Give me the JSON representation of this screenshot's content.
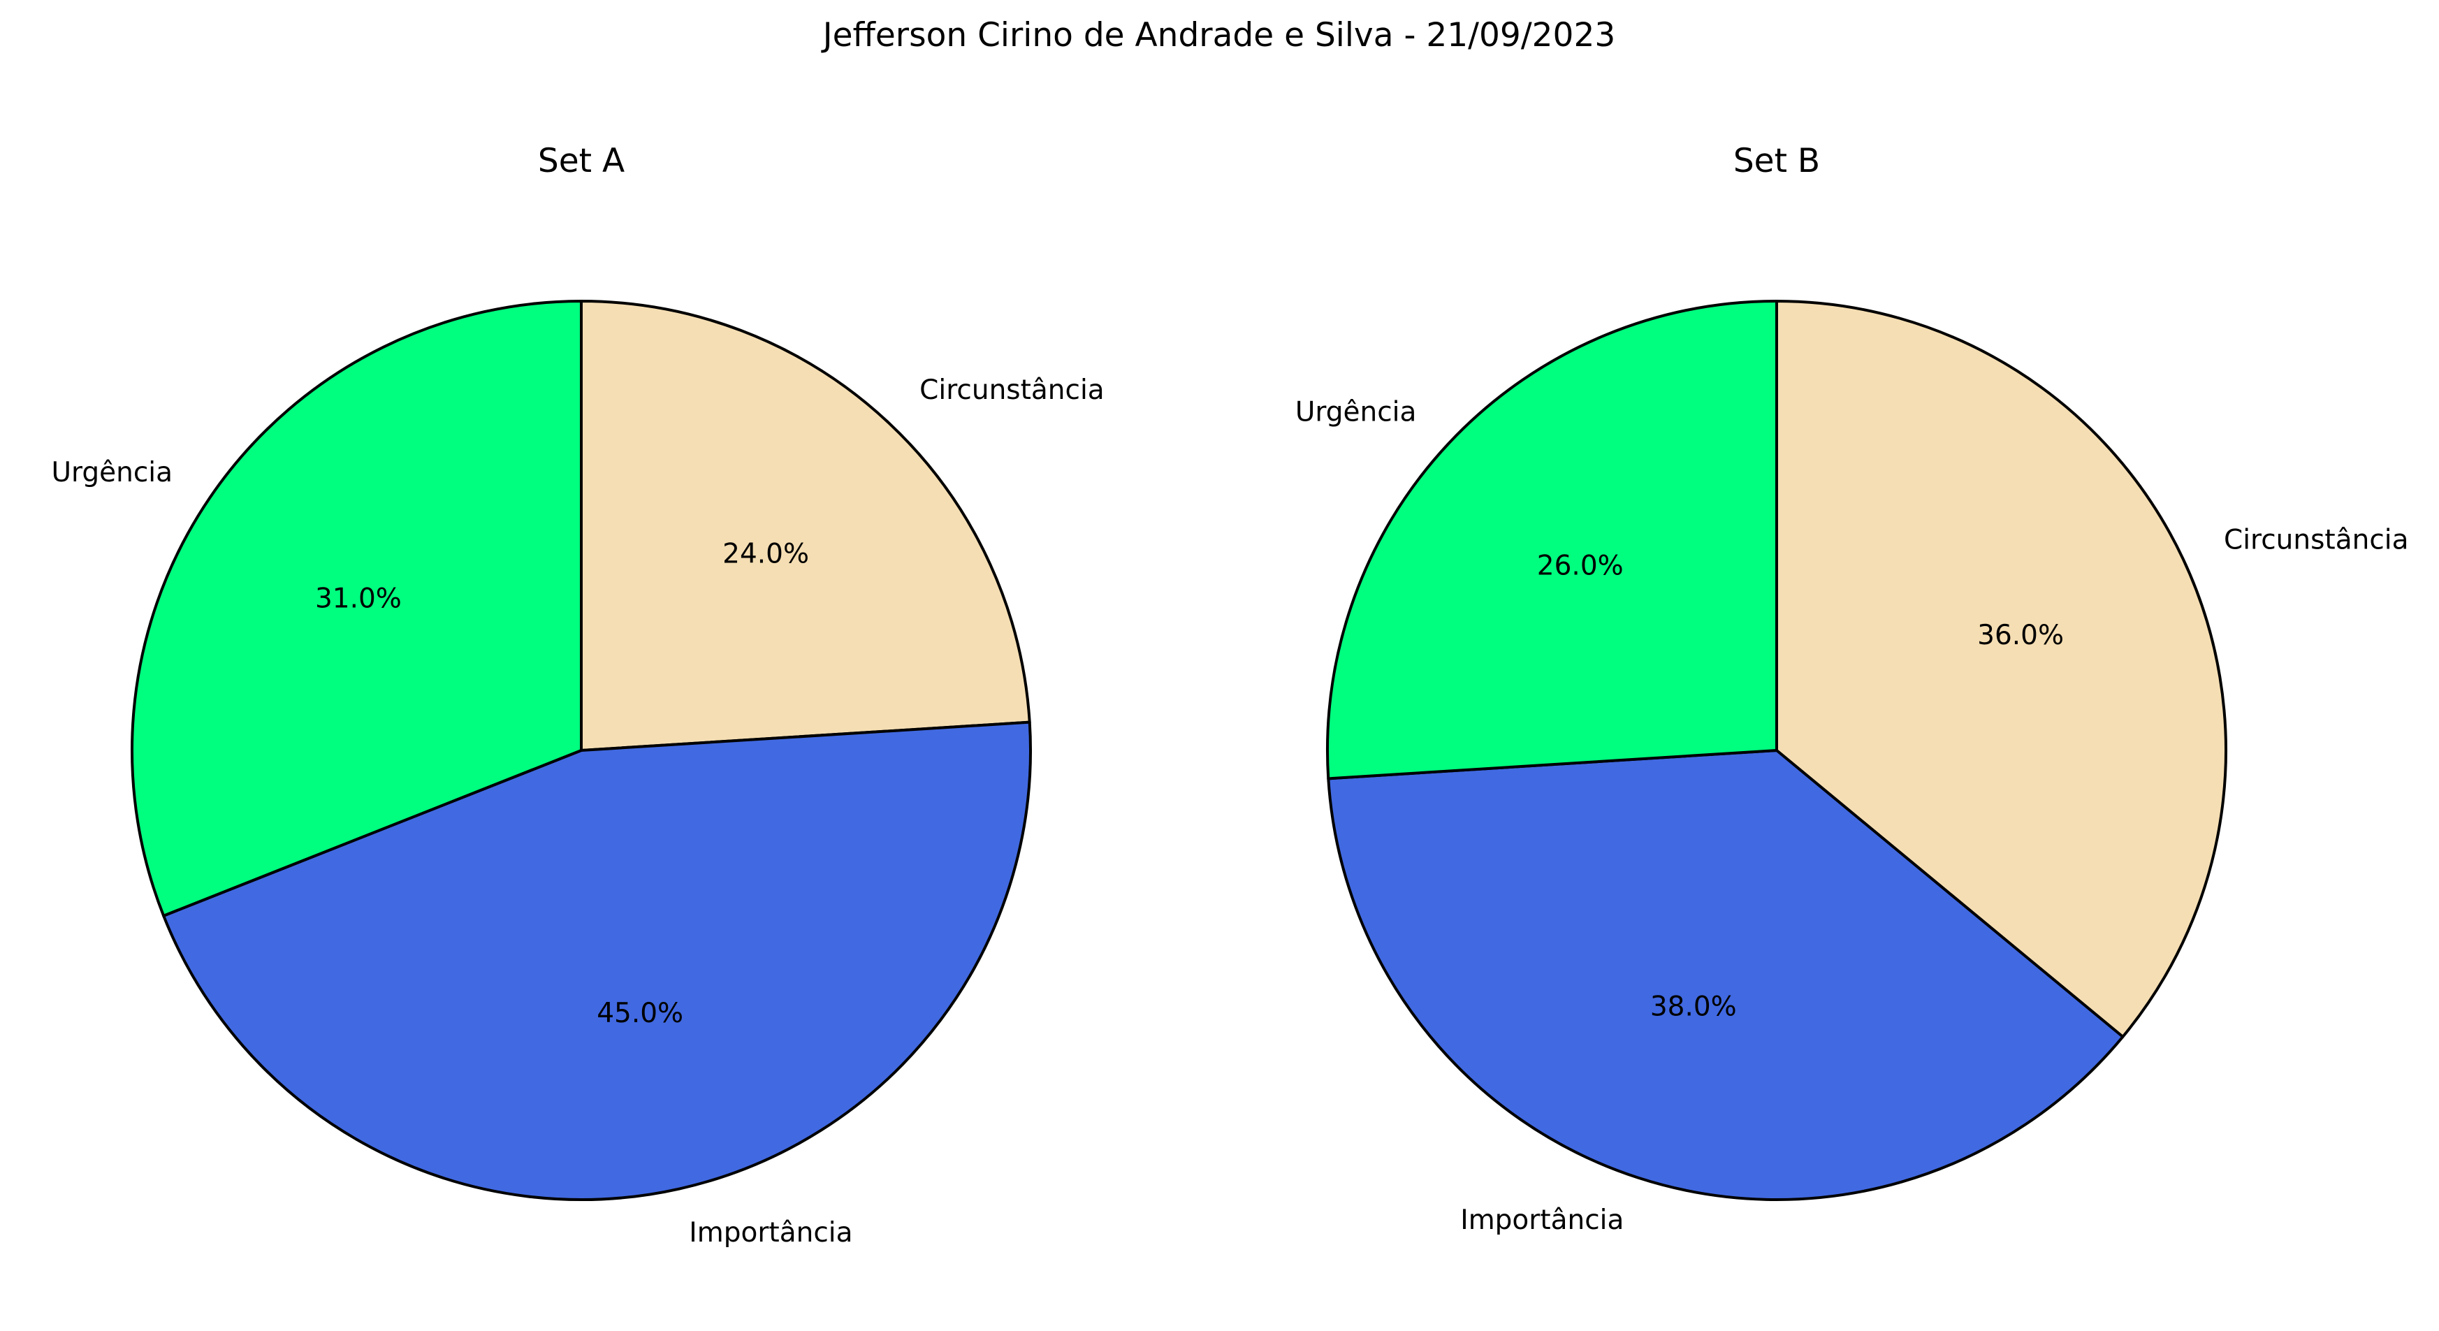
{
  "suptitle": "Jefferson Cirino de Andrade e Silva - 21/09/2023",
  "chart_data": [
    {
      "type": "pie",
      "title": "Set A",
      "categories": [
        "Circunstância",
        "Importância",
        "Urgência"
      ],
      "values": [
        24.0,
        45.0,
        31.0
      ],
      "value_labels": [
        "24.0%",
        "45.0%",
        "31.0%"
      ],
      "colors": [
        "#F5DEB3",
        "#4169E1",
        "#00FF7F"
      ],
      "start_angle_deg": 90,
      "direction": "clockwise",
      "edge_color": "#000000"
    },
    {
      "type": "pie",
      "title": "Set B",
      "categories": [
        "Circunstância",
        "Importância",
        "Urgência"
      ],
      "values": [
        36.0,
        38.0,
        26.0
      ],
      "value_labels": [
        "36.0%",
        "38.0%",
        "26.0%"
      ],
      "colors": [
        "#F5DEB3",
        "#4169E1",
        "#00FF7F"
      ],
      "start_angle_deg": 90,
      "direction": "clockwise",
      "edge_color": "#000000"
    }
  ]
}
